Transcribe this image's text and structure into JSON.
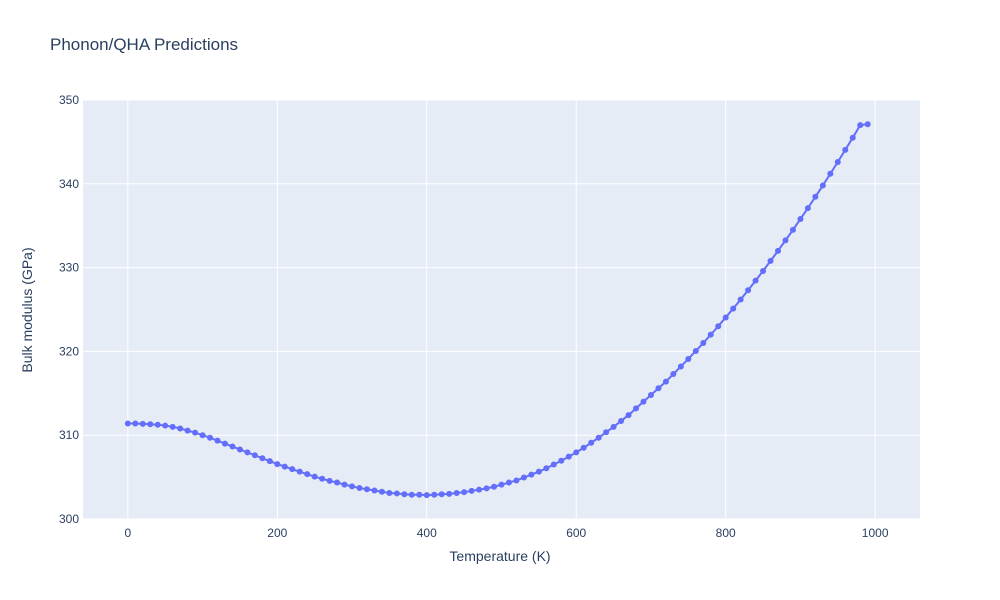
{
  "chart_data": {
    "type": "line",
    "title": "Phonon/QHA Predictions",
    "xlabel": "Temperature (K)",
    "ylabel": "Bulk modulus (GPa)",
    "xlim": [
      -60,
      1060
    ],
    "ylim": [
      300,
      350
    ],
    "x_ticks": [
      0,
      200,
      400,
      600,
      800,
      1000
    ],
    "y_ticks": [
      300,
      310,
      320,
      330,
      340,
      350
    ],
    "grid": true,
    "legend": "none",
    "colors": {
      "plot_bg": "#e5ecf6",
      "grid": "#ffffff",
      "series": "#636efa",
      "text": "#2a3f5f"
    },
    "series": [
      {
        "x": [
          0,
          10,
          20,
          30,
          40,
          50,
          60,
          70,
          80,
          90,
          100,
          110,
          120,
          130,
          140,
          150,
          160,
          170,
          180,
          190,
          200,
          210,
          220,
          230,
          240,
          250,
          260,
          270,
          280,
          290,
          300,
          310,
          320,
          330,
          340,
          350,
          360,
          370,
          380,
          390,
          400,
          410,
          420,
          430,
          440,
          450,
          460,
          470,
          480,
          490,
          500,
          510,
          520,
          530,
          540,
          550,
          560,
          570,
          580,
          590,
          600,
          610,
          620,
          630,
          640,
          650,
          660,
          670,
          680,
          690,
          700,
          710,
          720,
          730,
          740,
          750,
          760,
          770,
          780,
          790,
          800,
          810,
          820,
          830,
          840,
          850,
          860,
          870,
          880,
          890,
          900,
          910,
          920,
          930,
          940,
          950,
          960,
          970,
          980,
          990
        ],
        "y": [
          311.4,
          311.4,
          311.35,
          311.3,
          311.25,
          311.15,
          311.0,
          310.8,
          310.55,
          310.3,
          310.0,
          309.7,
          309.35,
          309.0,
          308.65,
          308.3,
          307.95,
          307.6,
          307.25,
          306.9,
          306.55,
          306.25,
          305.95,
          305.65,
          305.35,
          305.05,
          304.8,
          304.55,
          304.35,
          304.1,
          303.9,
          303.7,
          303.55,
          303.4,
          303.25,
          303.1,
          303.05,
          302.95,
          302.9,
          302.9,
          302.85,
          302.9,
          302.95,
          303.0,
          303.1,
          303.2,
          303.35,
          303.5,
          303.65,
          303.85,
          304.1,
          304.35,
          304.6,
          304.95,
          305.3,
          305.65,
          306.05,
          306.5,
          306.95,
          307.45,
          307.95,
          308.5,
          309.1,
          309.7,
          310.35,
          311.0,
          311.7,
          312.4,
          313.2,
          314.0,
          314.8,
          315.6,
          316.4,
          317.3,
          318.2,
          319.1,
          320.05,
          321.0,
          322.0,
          323.0,
          324.05,
          325.1,
          326.2,
          327.3,
          328.45,
          329.6,
          330.8,
          332.0,
          333.25,
          334.5,
          335.8,
          337.1,
          338.45,
          339.8,
          341.2,
          342.6,
          344.05,
          345.5,
          347.0,
          347.1
        ]
      }
    ]
  }
}
